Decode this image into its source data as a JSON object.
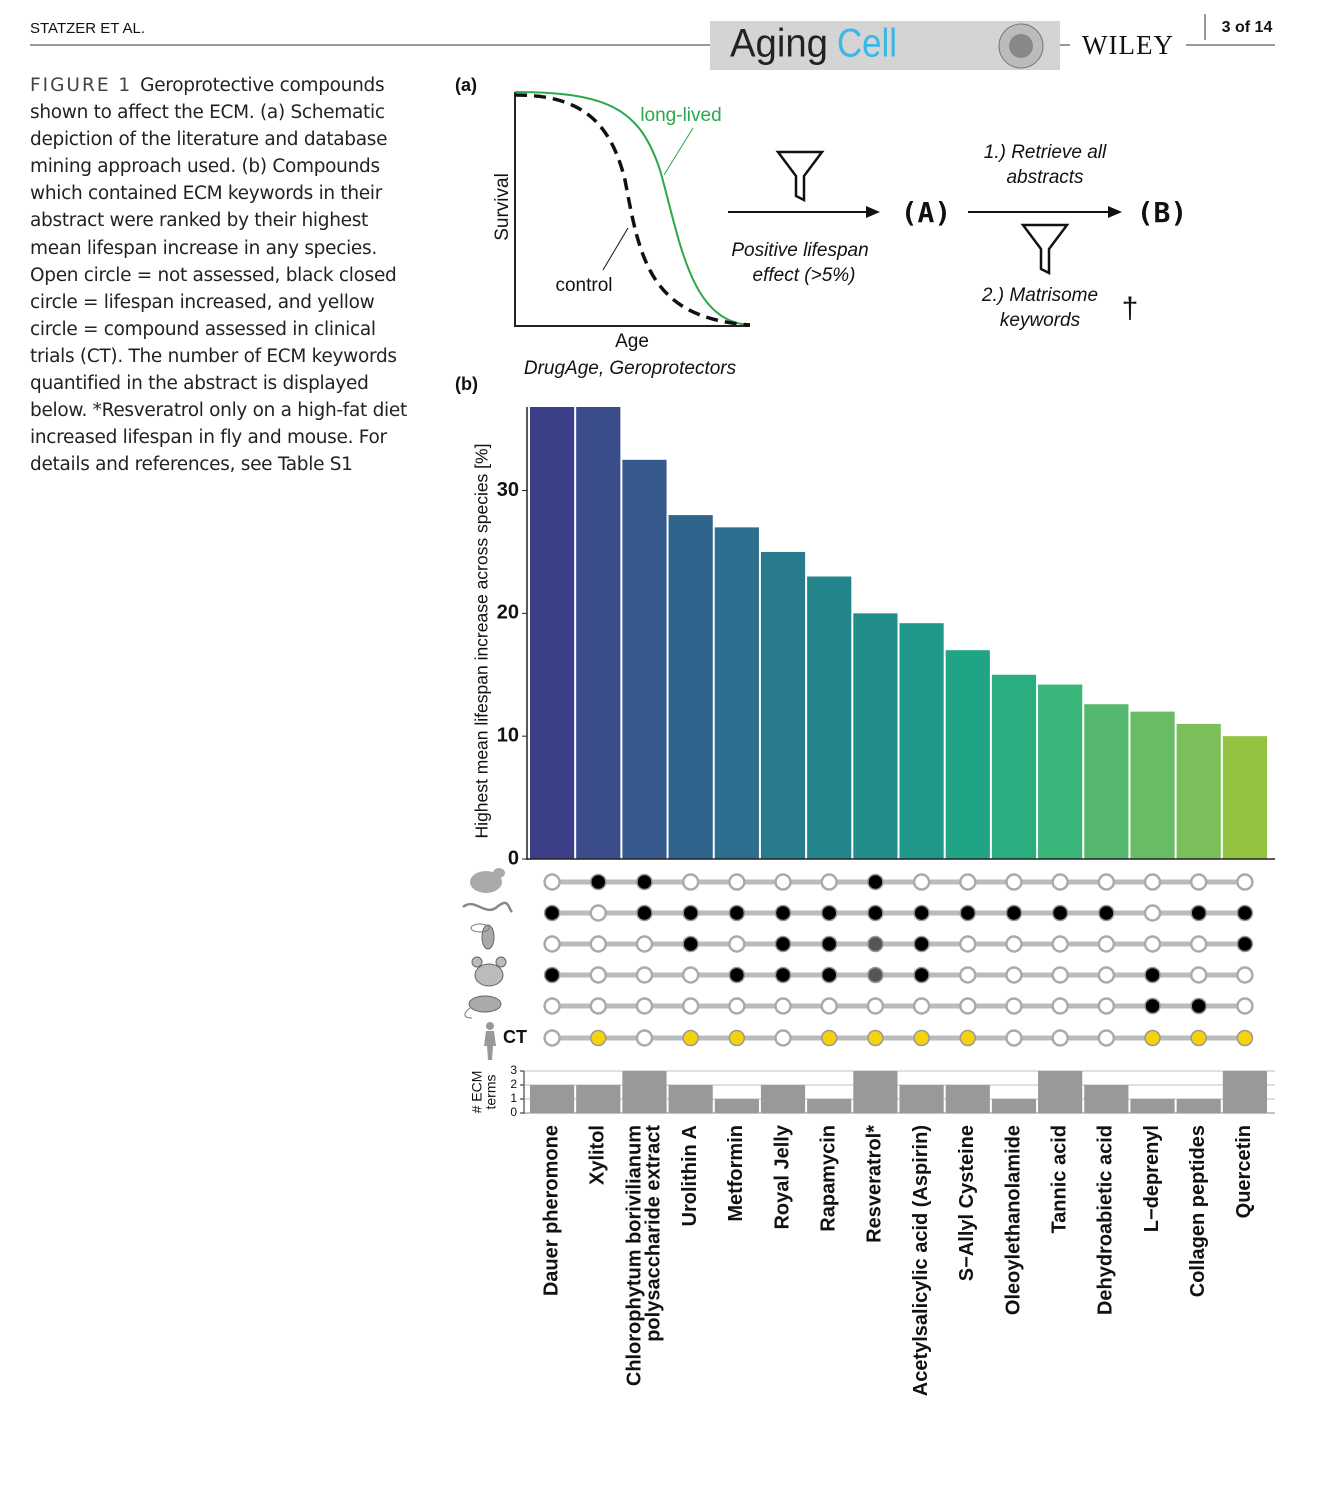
{
  "header": {
    "running_head": "STATZER ET AL.",
    "journal_first": "Aging",
    "journal_second": "Cell",
    "publisher": "WILEY",
    "page": "3 of 14"
  },
  "caption": {
    "label": "FIGURE 1",
    "text": "Geroprotective compounds shown to affect the ECM. (a) Schematic depiction of the literature and database mining approach used. (b) Compounds which contained ECM keywords in their abstract were ranked by their highest mean lifespan increase in any species. Open circle = not assessed, black closed circle = lifespan increased, and yellow circle = compound assessed in clinical trials (CT). The number of ECM keywords quantified in the abstract is displayed below. *Resveratrol only on a high-fat diet increased lifespan in fly and mouse. For details and references, see Table S1"
  },
  "panel_a": {
    "label": "(a)",
    "y_label": "Survival",
    "x_label": "Age",
    "long_label": "long-lived",
    "control_label": "control",
    "source": "DrugAge, Geroprotectors",
    "filter_1": [
      "Positive lifespan",
      "effect (>5%)"
    ],
    "node_a": "(A)",
    "node_b": "(B)",
    "step_1": [
      "1.) Retrieve all",
      "abstracts"
    ],
    "step_2": [
      "2.) Matrisome",
      "keywords"
    ],
    "dagger": "†"
  },
  "panel_b": {
    "label": "(b)",
    "dot_colors": {
      "open": "#ffffff",
      "filled": "#000000",
      "gray": "#555555",
      "yellow": "#f5d20a"
    },
    "dot_rows": [
      {
        "states": [
          "open",
          "filled",
          "filled",
          "open",
          "open",
          "open",
          "open",
          "filled",
          "open",
          "open",
          "open",
          "open",
          "open",
          "open",
          "open",
          "open"
        ]
      },
      {
        "states": [
          "filled",
          "open",
          "filled",
          "filled",
          "filled",
          "filled",
          "filled",
          "filled",
          "filled",
          "filled",
          "filled",
          "filled",
          "filled",
          "open",
          "filled",
          "filled"
        ]
      },
      {
        "states": [
          "open",
          "open",
          "open",
          "filled",
          "open",
          "filled",
          "filled",
          "gray",
          "filled",
          "open",
          "open",
          "open",
          "open",
          "open",
          "open",
          "filled"
        ]
      },
      {
        "states": [
          "filled",
          "open",
          "open",
          "open",
          "filled",
          "filled",
          "filled",
          "gray",
          "filled",
          "open",
          "open",
          "open",
          "open",
          "filled",
          "open",
          "open"
        ]
      },
      {
        "states": [
          "open",
          "open",
          "open",
          "open",
          "open",
          "open",
          "open",
          "open",
          "open",
          "open",
          "open",
          "open",
          "open",
          "filled",
          "filled",
          "open"
        ]
      },
      {
        "label": "CT",
        "states": [
          "open",
          "yellow",
          "open",
          "yellow",
          "yellow",
          "open",
          "yellow",
          "yellow",
          "yellow",
          "yellow",
          "open",
          "open",
          "open",
          "yellow",
          "yellow",
          "yellow"
        ]
      }
    ]
  },
  "chart_data": [
    {
      "type": "bar",
      "y_label": "Highest mean lifespan increase across species [%]",
      "categories": [
        "Dauer pheromone",
        "Xylitol",
        "Chlorophytum borivilianum polysaccharide extract",
        "Urolithin A",
        "Metformin",
        "Royal Jelly",
        "Rapamycin",
        "Resveratrol*",
        "Acetylsalicylic acid (Aspirin)",
        "S−Allyl Cysteine",
        "Oleoylethanolamide",
        "Tannic acid",
        "Dehydroabietic acid",
        "L−deprenyl",
        "Collagen peptides",
        "Quercetin"
      ],
      "values": [
        36.8,
        36.8,
        32.5,
        28,
        27,
        25,
        23,
        20,
        19.2,
        17,
        15,
        14.2,
        12.6,
        12,
        11,
        10
      ],
      "colors": [
        "#3b3f87",
        "#3a4d8a",
        "#35598c",
        "#2f648d",
        "#2b6e8d",
        "#287a8d",
        "#24848c",
        "#218e8b",
        "#1f988a",
        "#20a486",
        "#2aae80",
        "#3ab67a",
        "#55b86e",
        "#68bc65",
        "#7abf5a",
        "#94c241"
      ],
      "ylim": [
        0,
        36.8
      ],
      "yticks": [
        0,
        10,
        20,
        30
      ]
    },
    {
      "type": "bar",
      "y_label": [
        "# ECM",
        "terms"
      ],
      "values": [
        2,
        2,
        3,
        2,
        1,
        2,
        1,
        3,
        2,
        2,
        1,
        3,
        2,
        1,
        1,
        3
      ],
      "color": "#999999",
      "ylim": [
        0,
        3
      ],
      "yticks": [
        0,
        1,
        2,
        3
      ],
      "grid": true
    }
  ]
}
